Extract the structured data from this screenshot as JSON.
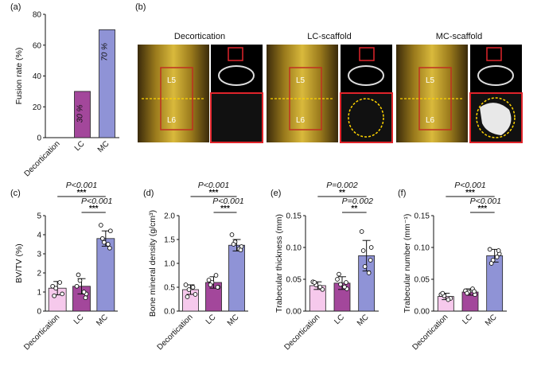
{
  "panel_labels": {
    "a": "(a)",
    "b": "(b)",
    "c": "(c)",
    "d": "(d)",
    "e": "(e)",
    "f": "(f)"
  },
  "groups": [
    "Decortication",
    "LC",
    "MC"
  ],
  "colors": {
    "Decortication": "#f6c9ec",
    "LC": "#a3479b",
    "MC": "#8f93d6"
  },
  "panel_b": {
    "columns": [
      "Decortication",
      "LC-scaffold",
      "MC-scaffold"
    ],
    "vertebra_labels": [
      "L5",
      "L6"
    ]
  },
  "chart_data": [
    {
      "id": "a",
      "type": "bar",
      "ylabel": "Fusion rate (%)",
      "categories": [
        "Decortication",
        "LC",
        "MC"
      ],
      "values": [
        0,
        30,
        70
      ],
      "bar_labels": [
        "",
        "30 %",
        "70 %"
      ],
      "ylim": [
        0,
        80
      ],
      "yticks": [
        0,
        20,
        40,
        60,
        80
      ],
      "grid": false
    },
    {
      "id": "c",
      "type": "bar",
      "ylabel": "BV/TV (%)",
      "categories": [
        "Decortication",
        "LC",
        "MC"
      ],
      "values": [
        1.2,
        1.3,
        3.8
      ],
      "errors": [
        0.35,
        0.4,
        0.4
      ],
      "points": [
        [
          1.3,
          0.9,
          1.2,
          1.5,
          0.8
        ],
        [
          1.3,
          0.9,
          1.6,
          1.0,
          1.9,
          0.7
        ],
        [
          4.5,
          4.2,
          3.6,
          3.5,
          3.8,
          3.3
        ]
      ],
      "ylim": [
        0,
        5
      ],
      "yticks": [
        0,
        1,
        2,
        3,
        4,
        5
      ],
      "comparisons": [
        {
          "from": 0,
          "to": 2,
          "p": "P<0.001",
          "stars": "***"
        },
        {
          "from": 1,
          "to": 2,
          "p": "P<0.001",
          "stars": "***"
        }
      ],
      "grid": false
    },
    {
      "id": "d",
      "type": "bar",
      "ylabel": "Bone mineral density (g/cm³)",
      "categories": [
        "Decortication",
        "LC",
        "MC"
      ],
      "values": [
        0.45,
        0.6,
        1.38
      ],
      "errors": [
        0.1,
        0.12,
        0.12
      ],
      "points": [
        [
          0.55,
          0.35,
          0.45,
          0.5,
          0.3
        ],
        [
          0.65,
          0.5,
          0.6,
          0.75,
          0.55,
          0.5
        ],
        [
          1.6,
          1.35,
          1.45,
          1.3,
          1.4,
          1.28
        ]
      ],
      "ylim": [
        0,
        2
      ],
      "yticks": [
        0.0,
        0.5,
        1.0,
        1.5,
        2.0
      ],
      "tick_labels": [
        "0.0",
        "0.5",
        "1.0",
        "1.5",
        "2.0"
      ],
      "comparisons": [
        {
          "from": 0,
          "to": 2,
          "p": "P<0.001",
          "stars": "***"
        },
        {
          "from": 1,
          "to": 2,
          "p": "P<0.001",
          "stars": "***"
        }
      ],
      "grid": false
    },
    {
      "id": "e",
      "type": "bar",
      "ylabel": "Trabecular thickness (mm)",
      "categories": [
        "Decortication",
        "LC",
        "MC"
      ],
      "values": [
        0.04,
        0.044,
        0.087
      ],
      "errors": [
        0.006,
        0.01,
        0.024
      ],
      "points": [
        [
          0.046,
          0.034,
          0.041,
          0.038,
          0.045
        ],
        [
          0.05,
          0.035,
          0.042,
          0.038,
          0.058,
          0.045
        ],
        [
          0.125,
          0.1,
          0.07,
          0.06,
          0.095,
          0.08
        ]
      ],
      "ylim": [
        0,
        0.15
      ],
      "yticks": [
        0.0,
        0.05,
        0.1,
        0.15
      ],
      "tick_labels": [
        "0.00",
        "0.05",
        "0.10",
        "0.15"
      ],
      "comparisons": [
        {
          "from": 0,
          "to": 2,
          "p": "P=0.002",
          "stars": "**"
        },
        {
          "from": 1,
          "to": 2,
          "p": "P=0.002",
          "stars": "**"
        }
      ],
      "grid": false
    },
    {
      "id": "f",
      "type": "bar",
      "ylabel": "Trabecular number (mm⁻¹)",
      "categories": [
        "Decortication",
        "LC",
        "MC"
      ],
      "values": [
        0.023,
        0.03,
        0.087
      ],
      "errors": [
        0.005,
        0.005,
        0.01
      ],
      "points": [
        [
          0.026,
          0.02,
          0.024,
          0.018,
          0.028
        ],
        [
          0.032,
          0.026,
          0.03,
          0.035,
          0.028,
          0.031
        ],
        [
          0.097,
          0.09,
          0.08,
          0.085,
          0.075,
          0.095
        ]
      ],
      "ylim": [
        0,
        0.15
      ],
      "yticks": [
        0.0,
        0.05,
        0.1,
        0.15
      ],
      "tick_labels": [
        "0.00",
        "0.05",
        "0.10",
        "0.15"
      ],
      "comparisons": [
        {
          "from": 0,
          "to": 2,
          "p": "P<0.001",
          "stars": "***"
        },
        {
          "from": 1,
          "to": 2,
          "p": "P<0.001",
          "stars": "***"
        }
      ],
      "grid": false
    }
  ]
}
